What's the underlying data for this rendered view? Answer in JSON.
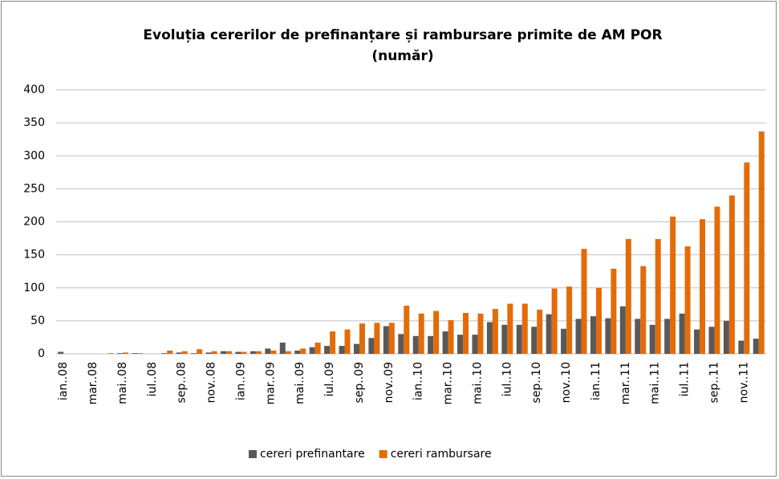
{
  "chart_data": {
    "type": "bar",
    "title": "Evoluția cererilor de prefinanțare și rambursare primite de AM POR",
    "subtitle": "(număr)",
    "categories": [
      "ian..08",
      null,
      "mar..08",
      null,
      "mai..08",
      null,
      "iul..08",
      null,
      "sep..08",
      null,
      "nov..08",
      null,
      "ian..09",
      null,
      "mar..09",
      null,
      "mai..09",
      null,
      "iul..09",
      null,
      "sep..09",
      null,
      "nov..09",
      null,
      "ian..10",
      null,
      "mar..10",
      null,
      "mai..10",
      null,
      "iul..10",
      null,
      "sep..10",
      null,
      "nov..10",
      null,
      "ian..11",
      null,
      "mar..11",
      null,
      "mai..11",
      null,
      "iul..11",
      null,
      "sep..11",
      null,
      "nov..11",
      null
    ],
    "series": [
      {
        "name": "cereri prefinantare",
        "color": "#595959",
        "values": [
          3,
          0,
          0,
          0,
          1,
          1,
          0,
          1,
          2,
          1,
          2,
          4,
          3,
          4,
          8,
          17,
          5,
          10,
          12,
          12,
          15,
          24,
          42,
          30,
          27,
          27,
          34,
          29,
          29,
          48,
          44,
          44,
          41,
          60,
          38,
          53,
          57,
          54,
          72,
          53,
          44,
          53,
          61,
          37,
          41,
          50,
          20,
          23
        ]
      },
      {
        "name": "cereri rambursare",
        "color": "#e36c09",
        "values": [
          0,
          0,
          0,
          1,
          2,
          1,
          0,
          5,
          4,
          7,
          4,
          4,
          3,
          4,
          5,
          4,
          8,
          17,
          34,
          37,
          46,
          47,
          47,
          73,
          61,
          65,
          51,
          62,
          61,
          68,
          76,
          76,
          67,
          99,
          102,
          159,
          100,
          129,
          174,
          133,
          174,
          208,
          163,
          204,
          223,
          240,
          290,
          337
        ]
      }
    ],
    "ylim": [
      0,
      400
    ],
    "yticks": [
      0,
      50,
      100,
      150,
      200,
      250,
      300,
      350,
      400
    ],
    "grid": true,
    "legend": "bottom"
  }
}
